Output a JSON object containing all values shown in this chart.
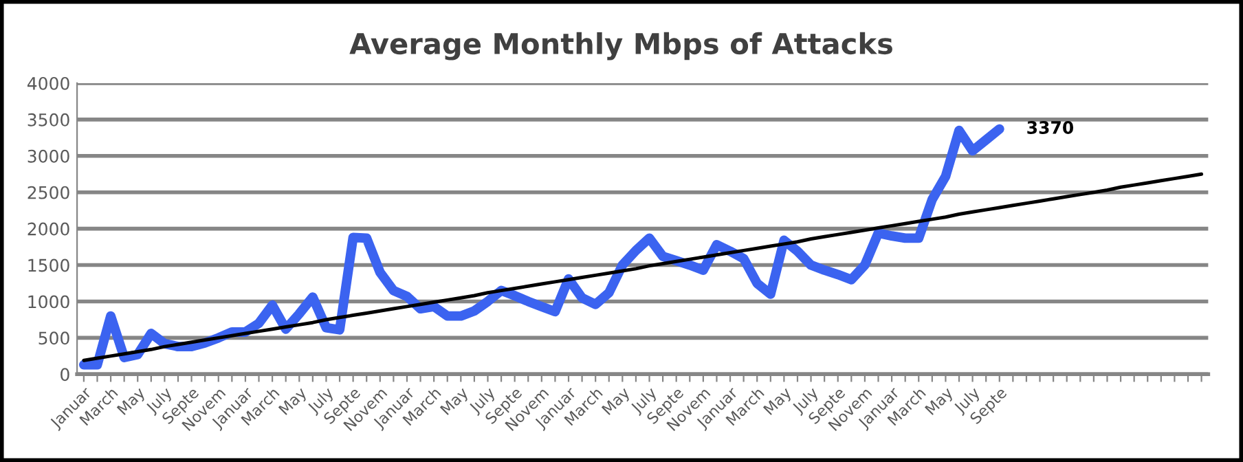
{
  "chart_data": {
    "type": "line",
    "title": "Average Monthly Mbps of Attacks",
    "categories": [
      "Januar",
      null,
      "March",
      null,
      "May",
      null,
      "July",
      null,
      "Septe",
      null,
      "Novem",
      null,
      "Januar",
      null,
      "March",
      null,
      "May",
      null,
      "July",
      null,
      "Septe",
      null,
      "Novem",
      null,
      "Januar",
      null,
      "March",
      null,
      "May",
      null,
      "July",
      null,
      "Septe",
      null,
      "Novem",
      null,
      "Januar",
      null,
      "March",
      null,
      "May",
      null,
      "July",
      null,
      "Septe",
      null,
      "Novem",
      null,
      "Januar",
      null,
      "March",
      null,
      "May",
      null,
      "July",
      null,
      "Septe",
      null,
      "Novem",
      null,
      "Januar",
      null,
      "March",
      null,
      "May",
      null,
      "July",
      null,
      "Septe",
      null,
      null,
      null,
      null,
      null,
      null,
      null,
      null,
      null,
      null,
      null,
      null,
      null,
      null,
      null
    ],
    "series": [
      {
        "color": "#3b63f0",
        "values": [
          130,
          130,
          800,
          230,
          270,
          560,
          420,
          380,
          380,
          430,
          500,
          580,
          580,
          700,
          950,
          620,
          830,
          1060,
          640,
          610,
          1880,
          1870,
          1400,
          1150,
          1070,
          900,
          930,
          800,
          800,
          870,
          1000,
          1150,
          1080,
          1000,
          930,
          860,
          1310,
          1050,
          960,
          1120,
          1500,
          1700,
          1870,
          1620,
          1560,
          1500,
          1430,
          1780,
          1690,
          1590,
          1250,
          1100,
          1840,
          1690,
          1500,
          1430,
          1370,
          1300,
          1500,
          1940,
          1900,
          1870,
          1870,
          2400,
          2720,
          3350,
          3070,
          3220,
          3370,
          null,
          null,
          null,
          null,
          null,
          null,
          null,
          null,
          null,
          null,
          null,
          null,
          null,
          null,
          null
        ],
        "value_labels": [
          null,
          null,
          null,
          null,
          null,
          null,
          null,
          null,
          null,
          null,
          null,
          null,
          null,
          null,
          null,
          null,
          null,
          null,
          null,
          null,
          null,
          null,
          null,
          null,
          null,
          null,
          null,
          null,
          null,
          null,
          null,
          null,
          null,
          null,
          null,
          null,
          null,
          null,
          null,
          null,
          null,
          null,
          null,
          null,
          null,
          null,
          null,
          null,
          null,
          null,
          null,
          null,
          null,
          null,
          null,
          null,
          null,
          null,
          null,
          null,
          null,
          null,
          null,
          null,
          null,
          null,
          null,
          null,
          "3370",
          null,
          null,
          null,
          null,
          null,
          null,
          null,
          null,
          null,
          null,
          null,
          null,
          null,
          null,
          null
        ]
      },
      {
        "type": "line",
        "color": "#000000",
        "values": [
          190,
          220,
          250,
          280,
          310,
          340,
          380,
          410,
          440,
          470,
          500,
          530,
          560,
          590,
          620,
          650,
          680,
          710,
          750,
          780,
          810,
          840,
          870,
          900,
          930,
          960,
          990,
          1020,
          1050,
          1080,
          1120,
          1150,
          1180,
          1210,
          1240,
          1270,
          1300,
          1330,
          1360,
          1390,
          1420,
          1450,
          1490,
          1520,
          1550,
          1580,
          1610,
          1640,
          1670,
          1700,
          1730,
          1760,
          1790,
          1820,
          1860,
          1890,
          1920,
          1950,
          1980,
          2010,
          2040,
          2070,
          2100,
          2130,
          2160,
          2200,
          2230,
          2260,
          2290,
          2320,
          2350,
          2380,
          2410,
          2440,
          2470,
          2500,
          2530,
          2570,
          2600,
          2630,
          2660,
          2690,
          2720,
          2750
        ]
      }
    ],
    "ylim": [
      0,
      4000
    ],
    "yticks": [
      0,
      500,
      1000,
      1500,
      2000,
      2500,
      3000,
      3500,
      4000
    ],
    "grid": "y",
    "legend": false,
    "marker": "none",
    "line_style": "solid"
  }
}
